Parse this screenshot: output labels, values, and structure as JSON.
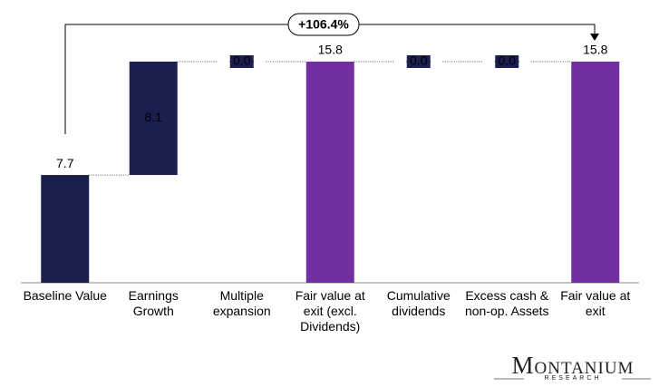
{
  "chart_data": {
    "type": "waterfall",
    "categories": [
      "Baseline Value",
      "Earnings Growth",
      "Multiple expansion",
      "Fair value at exit (excl. Dividends)",
      "Cumulative dividends",
      "Excess cash & non-op. Assets",
      "Fair value at exit"
    ],
    "values": [
      7.7,
      8.1,
      0,
      15.8,
      0,
      0,
      15.8
    ],
    "value_labels": [
      "7.7",
      "8.1",
      "0.0",
      "15.8",
      "0.0",
      "0.0",
      "15.8"
    ],
    "measures": [
      "absolute",
      "relative",
      "relative",
      "total",
      "relative",
      "relative",
      "total"
    ],
    "colors": {
      "absolute": "#1b1f4e",
      "relative": "#1b1f4e",
      "total": "#7030a0"
    },
    "annotation": "+106.4%"
  },
  "logo": {
    "name": "Montanium",
    "sub": "RESEARCH"
  }
}
